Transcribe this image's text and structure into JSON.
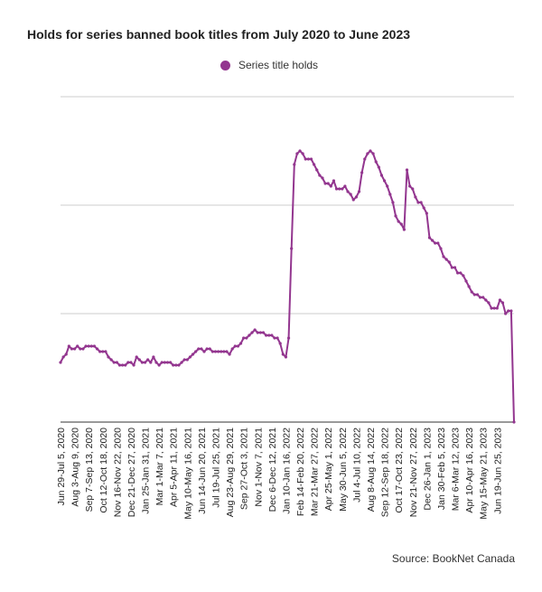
{
  "chart_data": {
    "type": "line",
    "title": "Holds for series banned book titles from July 2020 to June 2023",
    "source": "Source: BookNet Canada",
    "series": [
      {
        "name": "Series title holds",
        "color": "#93368f",
        "values": [
          22,
          24,
          25,
          28,
          27,
          27,
          28,
          27,
          27,
          28,
          28,
          28,
          28,
          27,
          26,
          26,
          26,
          24,
          23,
          22,
          22,
          21,
          21,
          21,
          22,
          22,
          21,
          24,
          23,
          22,
          22,
          23,
          22,
          24,
          22,
          21,
          22,
          22,
          22,
          22,
          21,
          21,
          21,
          22,
          23,
          23,
          24,
          25,
          26,
          27,
          27,
          26,
          27,
          27,
          26,
          26,
          26,
          26,
          26,
          26,
          25,
          27,
          28,
          28,
          29,
          31,
          31,
          32,
          33,
          34,
          33,
          33,
          33,
          32,
          32,
          32,
          31,
          31,
          29,
          25,
          24,
          31,
          64,
          95,
          99,
          100,
          99,
          97,
          97,
          97,
          95,
          93,
          91,
          90,
          88,
          88,
          87,
          89,
          86,
          86,
          86,
          87,
          85,
          84,
          82,
          83,
          85,
          92,
          97,
          99,
          100,
          99,
          96,
          94,
          91,
          89,
          87,
          84,
          81,
          76,
          74,
          73,
          71,
          93,
          87,
          86,
          83,
          81,
          81,
          79,
          77,
          68,
          67,
          66,
          66,
          64,
          61,
          60,
          59,
          57,
          57,
          55,
          55,
          54,
          52,
          50,
          48,
          47,
          47,
          46,
          46,
          45,
          44,
          42,
          42,
          42,
          45,
          44,
          40,
          41,
          41,
          0
        ]
      }
    ],
    "x_tick_labels": [
      "Jun 29-Jul 5, 2020",
      "Aug 3-Aug 9, 2020",
      "Sep 7-Sep 13, 2020",
      "Oct 12-Oct 18, 2020",
      "Nov 16-Nov 22, 2020",
      "Dec 21-Dec 27, 2020",
      "Jan 25-Jan 31, 2021",
      "Mar 1-Mar 7, 2021",
      "Apr 5-Apr 11, 2021",
      "May 10-May 16, 2021",
      "Jun 14-Jun 20, 2021",
      "Jul 19-Jul 25, 2021",
      "Aug 23-Aug 29, 2021",
      "Sep 27-Oct 3, 2021",
      "Nov 1-Nov 7, 2021",
      "Dec 6-Dec 12, 2021",
      "Jan 10-Jan 16, 2022",
      "Feb 14-Feb 20, 2022",
      "Mar 21-Mar 27, 2022",
      "Apr 25-May 1, 2022",
      "May 30-Jun 5, 2022",
      "Jul 4-Jul 10, 2022",
      "Aug 8-Aug 14, 2022",
      "Sep 12-Sep 18, 2022",
      "Oct 17-Oct 23, 2022",
      "Nov 21-Nov 27, 2022",
      "Dec 26-Jan 1, 2023",
      "Jan 30-Feb 5, 2023",
      "Mar 6-Mar 12, 2023",
      "Apr 10-Apr 16, 2023",
      "May 15-May 21, 2023",
      "Jun 19-Jun 25, 2023"
    ],
    "tick_every": 5,
    "xlabel": "",
    "ylabel": "",
    "ylim": [
      0,
      120
    ],
    "y_gridlines": [
      0,
      40,
      80,
      120
    ],
    "y_tick_labels_shown": false,
    "grid": "horizontal",
    "legend_position": "top-center",
    "colors": {
      "gridline": "#cccccc",
      "axis": "#333333"
    }
  }
}
